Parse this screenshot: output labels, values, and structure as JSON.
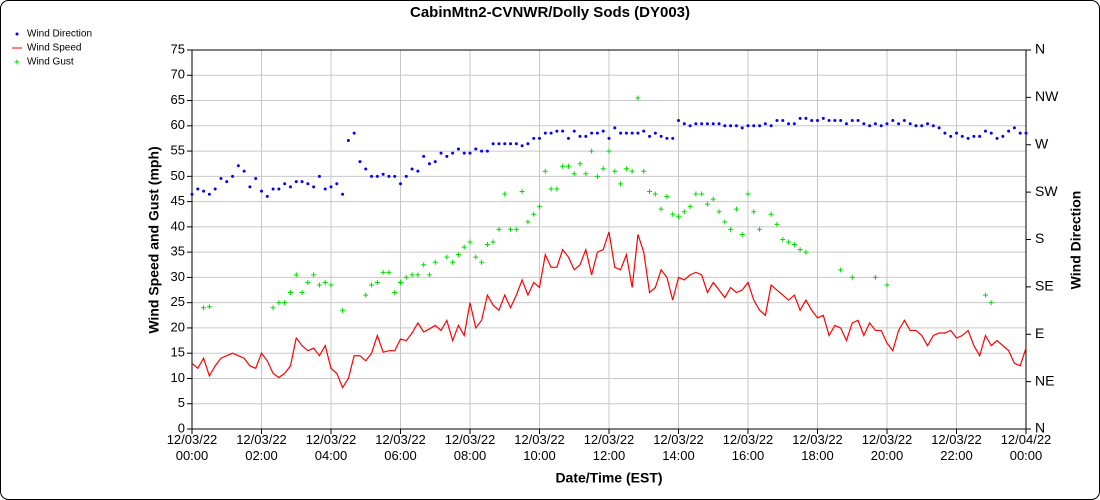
{
  "chart_data": {
    "type": "line",
    "title": "CabinMtn2-CVNWR/Dolly Sods (DY003)",
    "xlabel": "Date/Time (EST)",
    "ylabel": "Wind Speed and Gust (mph)",
    "y2label": "Wind Direction",
    "grid": true,
    "legend": "top-left",
    "xlim": [
      "12/03/22 00:00",
      "12/04/22 00:00"
    ],
    "xticks": [
      "12/03/22 00:00",
      "12/03/22 02:00",
      "12/03/22 04:00",
      "12/03/22 06:00",
      "12/03/22 08:00",
      "12/03/22 10:00",
      "12/03/22 12:00",
      "12/03/22 14:00",
      "12/03/22 16:00",
      "12/03/22 18:00",
      "12/03/22 20:00",
      "12/03/22 22:00",
      "12/04/22 00:00"
    ],
    "ylim": [
      0,
      75
    ],
    "yticks": [
      0,
      5,
      10,
      15,
      20,
      25,
      30,
      35,
      40,
      45,
      50,
      55,
      60,
      65,
      70,
      75
    ],
    "y2lim": [
      0,
      360
    ],
    "y2ticks": [
      {
        "value": 0,
        "label": "N"
      },
      {
        "value": 45,
        "label": "NE"
      },
      {
        "value": 90,
        "label": "E"
      },
      {
        "value": 135,
        "label": "SE"
      },
      {
        "value": 180,
        "label": "S"
      },
      {
        "value": 225,
        "label": "SW"
      },
      {
        "value": 270,
        "label": "W"
      },
      {
        "value": 315,
        "label": "NW"
      },
      {
        "value": 360,
        "label": "N"
      }
    ],
    "x": [
      "12/03/22 00:00",
      "12/03/22 00:10",
      "12/03/22 00:20",
      "12/03/22 00:30",
      "12/03/22 00:40",
      "12/03/22 00:50",
      "12/03/22 01:00",
      "12/03/22 01:10",
      "12/03/22 01:20",
      "12/03/22 01:30",
      "12/03/22 01:40",
      "12/03/22 01:50",
      "12/03/22 02:00",
      "12/03/22 02:10",
      "12/03/22 02:20",
      "12/03/22 02:30",
      "12/03/22 02:40",
      "12/03/22 02:50",
      "12/03/22 03:00",
      "12/03/22 03:10",
      "12/03/22 03:20",
      "12/03/22 03:30",
      "12/03/22 03:40",
      "12/03/22 03:50",
      "12/03/22 04:00",
      "12/03/22 04:10",
      "12/03/22 04:20",
      "12/03/22 04:30",
      "12/03/22 04:40",
      "12/03/22 04:50",
      "12/03/22 05:00",
      "12/03/22 05:10",
      "12/03/22 05:20",
      "12/03/22 05:30",
      "12/03/22 05:40",
      "12/03/22 05:50",
      "12/03/22 06:00",
      "12/03/22 06:10",
      "12/03/22 06:20",
      "12/03/22 06:30",
      "12/03/22 06:40",
      "12/03/22 06:50",
      "12/03/22 07:00",
      "12/03/22 07:10",
      "12/03/22 07:20",
      "12/03/22 07:30",
      "12/03/22 07:40",
      "12/03/22 07:50",
      "12/03/22 08:00",
      "12/03/22 08:10",
      "12/03/22 08:20",
      "12/03/22 08:30",
      "12/03/22 08:40",
      "12/03/22 08:50",
      "12/03/22 09:00",
      "12/03/22 09:10",
      "12/03/22 09:20",
      "12/03/22 09:30",
      "12/03/22 09:40",
      "12/03/22 09:50",
      "12/03/22 10:00",
      "12/03/22 10:10",
      "12/03/22 10:20",
      "12/03/22 10:30",
      "12/03/22 10:40",
      "12/03/22 10:50",
      "12/03/22 11:00",
      "12/03/22 11:10",
      "12/03/22 11:20",
      "12/03/22 11:30",
      "12/03/22 11:40",
      "12/03/22 11:50",
      "12/03/22 12:00",
      "12/03/22 12:10",
      "12/03/22 12:20",
      "12/03/22 12:30",
      "12/03/22 12:40",
      "12/03/22 12:50",
      "12/03/22 13:00",
      "12/03/22 13:10",
      "12/03/22 13:20",
      "12/03/22 13:30",
      "12/03/22 13:40",
      "12/03/22 13:50",
      "12/03/22 14:00",
      "12/03/22 14:10",
      "12/03/22 14:20",
      "12/03/22 14:30",
      "12/03/22 14:40",
      "12/03/22 14:50",
      "12/03/22 15:00",
      "12/03/22 15:10",
      "12/03/22 15:20",
      "12/03/22 15:30",
      "12/03/22 15:40",
      "12/03/22 15:50",
      "12/03/22 16:00",
      "12/03/22 16:10",
      "12/03/22 16:20",
      "12/03/22 16:30",
      "12/03/22 16:40",
      "12/03/22 16:50",
      "12/03/22 17:00",
      "12/03/22 17:10",
      "12/03/22 17:20",
      "12/03/22 17:30",
      "12/03/22 17:40",
      "12/03/22 17:50",
      "12/03/22 18:00",
      "12/03/22 18:10",
      "12/03/22 18:20",
      "12/03/22 18:30",
      "12/03/22 18:40",
      "12/03/22 18:50",
      "12/03/22 19:00",
      "12/03/22 19:10",
      "12/03/22 19:20",
      "12/03/22 19:30",
      "12/03/22 19:40",
      "12/03/22 19:50",
      "12/03/22 20:00",
      "12/03/22 20:10",
      "12/03/22 20:20",
      "12/03/22 20:30",
      "12/03/22 20:40",
      "12/03/22 20:50",
      "12/03/22 21:00",
      "12/03/22 21:10",
      "12/03/22 21:20",
      "12/03/22 21:30",
      "12/03/22 21:40",
      "12/03/22 21:50",
      "12/03/22 22:00",
      "12/03/22 22:10",
      "12/03/22 22:20",
      "12/03/22 22:30",
      "12/03/22 22:40",
      "12/03/22 22:50",
      "12/03/22 23:00",
      "12/03/22 23:10",
      "12/03/22 23:20",
      "12/03/22 23:30",
      "12/03/22 23:40",
      "12/03/22 23:50",
      "12/04/22 00:00"
    ],
    "series": [
      {
        "name": "Wind Direction",
        "color": "#0000ff",
        "marker": "dot",
        "axis": "y2",
        "values": [
          223,
          228,
          226,
          223,
          228,
          238,
          235,
          240,
          250,
          245,
          230,
          238,
          226,
          221,
          228,
          228,
          233,
          230,
          235,
          235,
          233,
          230,
          240,
          228,
          230,
          233,
          223,
          274,
          281,
          254,
          247,
          240,
          240,
          242,
          240,
          240,
          233,
          240,
          247,
          245,
          259,
          252,
          254,
          262,
          259,
          262,
          266,
          262,
          262,
          266,
          264,
          264,
          271,
          271,
          271,
          271,
          271,
          269,
          271,
          276,
          276,
          281,
          281,
          283,
          283,
          276,
          283,
          278,
          278,
          281,
          281,
          283,
          276,
          286,
          281,
          281,
          281,
          281,
          283,
          278,
          281,
          278,
          276,
          276,
          293,
          290,
          288,
          290,
          290,
          290,
          290,
          290,
          288,
          288,
          288,
          286,
          288,
          288,
          288,
          290,
          288,
          293,
          293,
          290,
          290,
          295,
          295,
          293,
          293,
          295,
          293,
          293,
          293,
          290,
          293,
          293,
          290,
          288,
          290,
          288,
          290,
          293,
          290,
          293,
          290,
          288,
          288,
          290,
          288,
          286,
          281,
          278,
          281,
          278,
          276,
          278,
          278,
          283,
          281,
          276,
          278,
          283,
          286,
          281,
          281
        ]
      },
      {
        "name": "Wind Speed",
        "color": "#ff0000",
        "marker": "line",
        "values": [
          13,
          12,
          14,
          10.5,
          12.5,
          14,
          14.5,
          15,
          14.5,
          14,
          12.5,
          12,
          15,
          13.5,
          11,
          10.2,
          11,
          12.5,
          18,
          16.5,
          15.5,
          16,
          14.5,
          16.5,
          12,
          11,
          8.2,
          10,
          14.5,
          14.5,
          13.5,
          15,
          18.5,
          15.2,
          15.5,
          15.5,
          17.8,
          17.5,
          19,
          21,
          19.2,
          19.8,
          20.5,
          19.5,
          21.5,
          17.5,
          20.5,
          18.5,
          25,
          20,
          21.5,
          26.5,
          24.5,
          23.5,
          26.5,
          24,
          26.5,
          29.5,
          26.5,
          29,
          28,
          34.5,
          32,
          32,
          35.5,
          34,
          31.5,
          32.5,
          35.5,
          30.5,
          35,
          35.5,
          39,
          32,
          31.5,
          34.5,
          28,
          38.5,
          35,
          27,
          28,
          31.5,
          30,
          25.5,
          30,
          29.5,
          30.5,
          31,
          30.5,
          27,
          29,
          27.5,
          26,
          28,
          27,
          27.5,
          29,
          25.5,
          23.5,
          22.5,
          28.5,
          27.5,
          26.5,
          25.5,
          26.5,
          23.5,
          25.5,
          23.5,
          22,
          22.5,
          18.5,
          20.5,
          20,
          17.5,
          21,
          21.5,
          18.5,
          21,
          19.5,
          19.5,
          17,
          15.5,
          19.5,
          21.5,
          19.5,
          19.5,
          18.5,
          16.5,
          18.5,
          19,
          19,
          19.5,
          18,
          18.5,
          19.5,
          16.5,
          14.5,
          18.5,
          16.5,
          17.5,
          16.5,
          15.5,
          13,
          12.5,
          16
        ]
      },
      {
        "name": "Wind Gust",
        "color": "#00dd00",
        "marker": "plus",
        "values": [
          null,
          null,
          24,
          24.2,
          null,
          null,
          null,
          null,
          null,
          null,
          null,
          null,
          null,
          null,
          24,
          25,
          25,
          27,
          30.5,
          27,
          29,
          30.5,
          28.5,
          29,
          28.5,
          null,
          23.5,
          null,
          null,
          null,
          26.5,
          28.5,
          29,
          31,
          31,
          27,
          29,
          30,
          30.5,
          30.5,
          32.5,
          30.5,
          33,
          null,
          34,
          33,
          34.5,
          36,
          37,
          34,
          33,
          36.5,
          37,
          39.5,
          46.5,
          39.5,
          39.5,
          47,
          41,
          42.5,
          44,
          51,
          47.5,
          47.5,
          52,
          52,
          50.5,
          52.5,
          50.5,
          55,
          50,
          51.5,
          55,
          51,
          48.5,
          51.5,
          51,
          65.5,
          51,
          47,
          46.5,
          43.5,
          46,
          42.5,
          42,
          43,
          44,
          46.5,
          46.5,
          44.5,
          45.5,
          43,
          41,
          39.5,
          43.5,
          38.5,
          46.5,
          43,
          39.5,
          null,
          42.5,
          40.5,
          37.5,
          37,
          36.5,
          35.5,
          35,
          null,
          null,
          null,
          null,
          null,
          31.5,
          null,
          30,
          null,
          null,
          null,
          30,
          null,
          28.5,
          null,
          null,
          null,
          null,
          null,
          null,
          null,
          null,
          null,
          null,
          null,
          null,
          null,
          null,
          null,
          null,
          26.5,
          25,
          null,
          null,
          null,
          null,
          null,
          null
        ]
      }
    ]
  }
}
